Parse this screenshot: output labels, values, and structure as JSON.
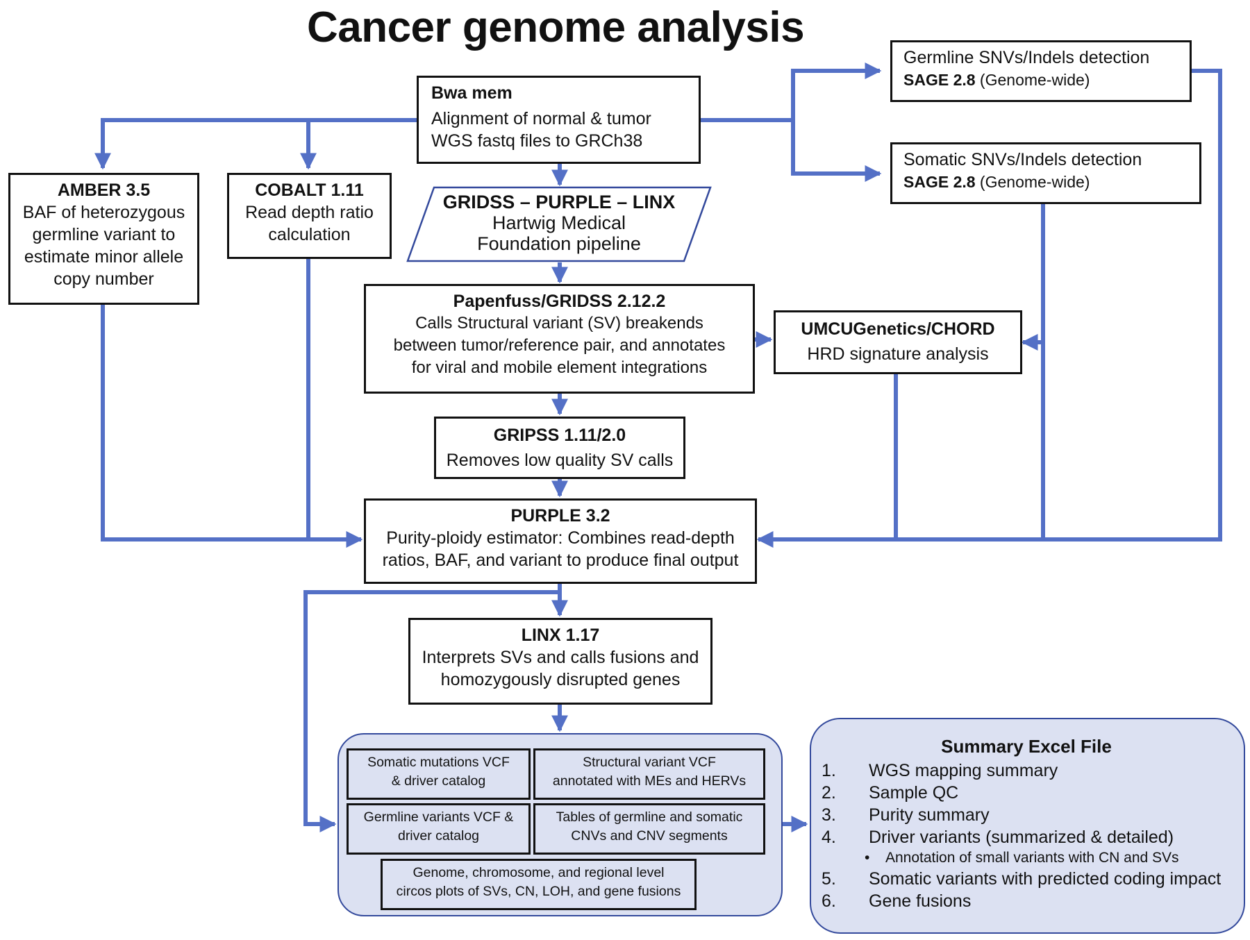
{
  "title": "Cancer genome analysis",
  "bwa": {
    "head": "Bwa mem",
    "line1": "Alignment of normal & tumor",
    "line2": "WGS fastq files to GRCh38"
  },
  "amber": {
    "head": "AMBER 3.5",
    "line1": "BAF of heterozygous",
    "line2": "germline variant to",
    "line3": "estimate minor allele",
    "line4": "copy number"
  },
  "cobalt": {
    "head": "COBALT 1.11",
    "line1": "Read depth ratio",
    "line2": "calculation"
  },
  "hmf": {
    "head": "GRIDSS – PURPLE – LINX",
    "line1": "Hartwig Medical",
    "line2": "Foundation pipeline"
  },
  "germline": {
    "line1": "Germline SNVs/Indels detection",
    "tool": "SAGE 2.8",
    "scope": " (Genome-wide)"
  },
  "somatic": {
    "line1": "Somatic SNVs/Indels  detection",
    "tool": "SAGE 2.8",
    "scope": " (Genome-wide)"
  },
  "gridss": {
    "head": "Papenfuss/GRIDSS 2.12.2",
    "line1": "Calls Structural variant (SV)  breakends",
    "line2": "between tumor/reference pair, and annotates",
    "line3": "for viral and mobile element integrations"
  },
  "chord": {
    "head": "UMCUGenetics/CHORD",
    "line1": "HRD signature analysis"
  },
  "gripss": {
    "head": "GRIPSS 1.11/2.0",
    "line1": "Removes low quality SV calls"
  },
  "purple": {
    "head": "PURPLE 3.2",
    "line1": "Purity-ploidy estimator:  Combines read-depth",
    "line2": "ratios, BAF, and variant to produce final output"
  },
  "linx": {
    "head": "LINX 1.17",
    "line1": "Interprets SVs and calls fusions and",
    "line2": "homozygously disrupted genes"
  },
  "outputs": {
    "b1": {
      "line1": "Somatic mutations VCF",
      "line2": "& driver catalog"
    },
    "b2": {
      "line1": "Structural variant VCF",
      "line2": "annotated with MEs and HERVs"
    },
    "b3": {
      "line1": "Germline variants VCF &",
      "line2": "driver catalog"
    },
    "b4": {
      "line1": "Tables of germline and somatic",
      "line2": "CNVs and CNV segments"
    },
    "b5": {
      "line1": "Genome, chromosome, and regional level",
      "line2": "circos plots of SVs, CN, LOH, and gene fusions"
    }
  },
  "summary": {
    "title": "Summary Excel File",
    "items": [
      {
        "num": "1.",
        "text": "WGS mapping summary"
      },
      {
        "num": "2.",
        "text": "Sample QC"
      },
      {
        "num": "3.",
        "text": "Purity summary"
      },
      {
        "num": "4.",
        "text": "Driver variants (summarized & detailed)"
      },
      {
        "num": "5.",
        "text": "Somatic variants with predicted coding impact"
      },
      {
        "num": "6.",
        "text": "Gene fusions"
      }
    ],
    "sub_bullet": "•",
    "sub_item": "Annotation of small variants with CN and SVs"
  },
  "colors": {
    "arrow": "#5470c6",
    "group_fill": "#dce1f2",
    "group_border": "#33499c"
  }
}
